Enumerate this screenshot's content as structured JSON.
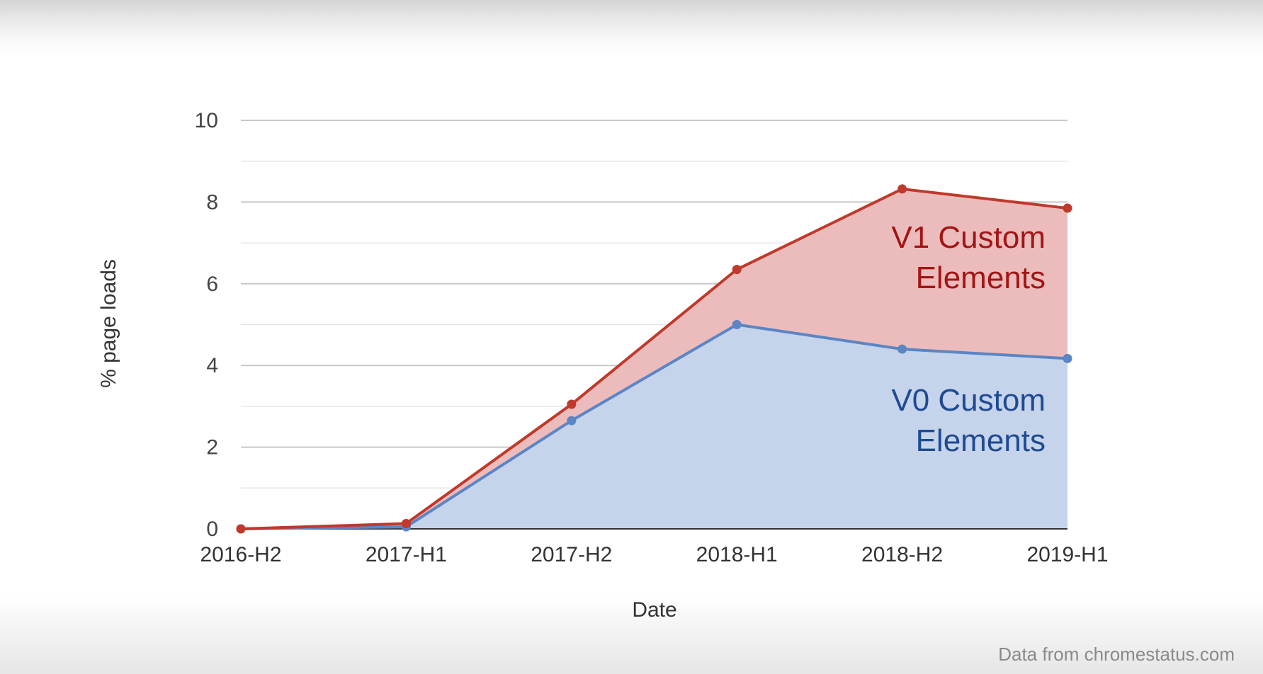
{
  "chart_data": {
    "type": "area",
    "stacked": true,
    "categories": [
      "2016-H2",
      "2017-H1",
      "2017-H2",
      "2018-H1",
      "2018-H2",
      "2019-H1"
    ],
    "series": [
      {
        "name": "V0 Custom Elements",
        "values": [
          0,
          0.05,
          2.65,
          5.0,
          4.4,
          4.17
        ],
        "color": "#5b85c5",
        "fill": "#c5d4ea",
        "text_color": "#1f4a93"
      },
      {
        "name": "V1 Custom Elements",
        "values": [
          0,
          0.08,
          0.4,
          1.35,
          3.92,
          3.68
        ],
        "color": "#c0392b",
        "fill": "#ecbcbc",
        "text_color": "#a31515"
      }
    ],
    "series_label_lines": [
      [
        "V0 Custom",
        "Elements"
      ],
      [
        "V1 Custom",
        "Elements"
      ]
    ],
    "xlabel": "Date",
    "ylabel": "% page loads",
    "ylim": [
      0,
      10
    ],
    "yticks": [
      0,
      2,
      4,
      6,
      8,
      10
    ],
    "grid": true,
    "legend": "inline-labels"
  },
  "footer": {
    "source": "Data from chromestatus.com"
  }
}
